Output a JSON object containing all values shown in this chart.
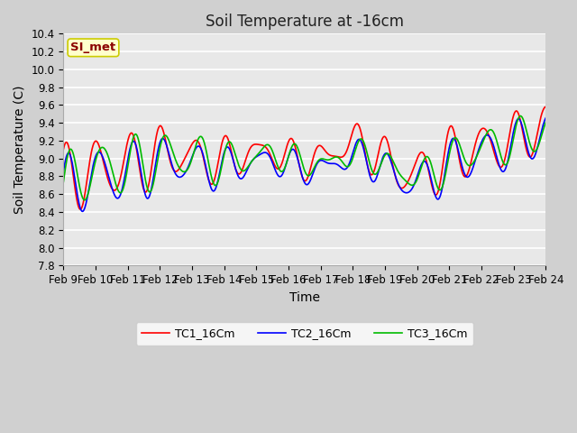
{
  "title": "Soil Temperature at -16cm",
  "xlabel": "Time",
  "ylabel": "Soil Temperature (C)",
  "ylim": [
    7.8,
    10.4
  ],
  "colors": {
    "TC1": "#ff0000",
    "TC2": "#0000ff",
    "TC3": "#00bb00"
  },
  "legend_labels": [
    "TC1_16Cm",
    "TC2_16Cm",
    "TC3_16Cm"
  ],
  "annotation_text": "SI_met",
  "annotation_color": "#8b0000",
  "annotation_bg": "#ffffcc",
  "annotation_edge": "#cccc00",
  "plot_bg": "#e8e8e8",
  "fig_bg": "#d0d0d0",
  "title_fontsize": 12,
  "label_fontsize": 10,
  "tick_fontsize": 8.5,
  "legend_fontsize": 9,
  "x_tick_labels": [
    "Feb 9",
    "Feb 10",
    "Feb 11",
    "Feb 12",
    "Feb 13",
    "Feb 14",
    "Feb 15",
    "Feb 16",
    "Feb 17",
    "Feb 18",
    "Feb 19",
    "Feb 20",
    "Feb 21",
    "Feb 22",
    "Feb 23",
    "Feb 24"
  ]
}
